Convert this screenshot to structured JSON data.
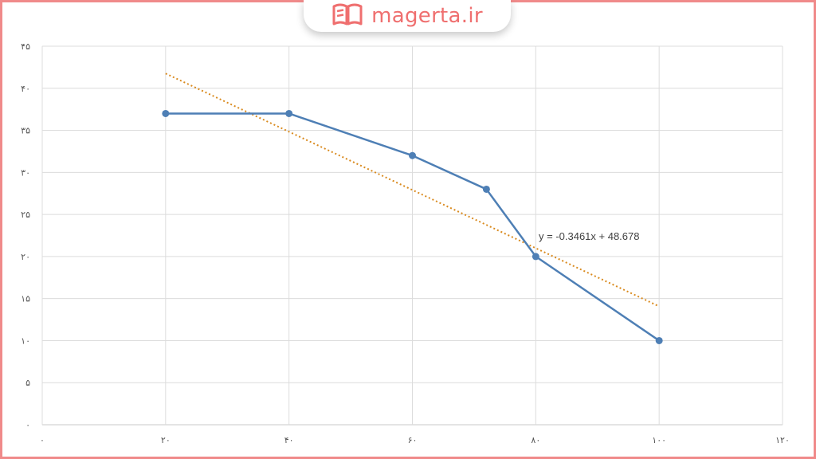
{
  "brand": {
    "name": "magerta.ir",
    "icon": "open-book-icon",
    "color": "#ef6f6f"
  },
  "chart_data": {
    "type": "line",
    "x": [
      20,
      40,
      60,
      72,
      80,
      100
    ],
    "series": [
      {
        "values": [
          37,
          37,
          32,
          28,
          20,
          10
        ],
        "color": "#4e7fb5",
        "marker": "circle"
      }
    ],
    "trendline": {
      "type": "linear",
      "slope": -0.3461,
      "intercept": 48.678,
      "x_range": [
        20,
        100
      ],
      "style": "dotted",
      "color": "#d98a1e",
      "equation_label": "y = -0.3461x + 48.678"
    },
    "xlim": [
      0,
      120
    ],
    "ylim": [
      0,
      45
    ],
    "x_ticks": [
      0,
      20,
      40,
      60,
      80,
      100,
      120
    ],
    "y_ticks": [
      0,
      5,
      10,
      15,
      20,
      25,
      30,
      35,
      40,
      45
    ],
    "x_tick_labels": [
      "٠",
      "٢٠",
      "۴٠",
      "۶٠",
      "٨٠",
      "١٠٠",
      "١٢٠"
    ],
    "y_tick_labels": [
      "٠",
      "۵",
      "١٠",
      "١۵",
      "٢٠",
      "٢۵",
      "٣٠",
      "٣۵",
      "۴٠",
      "۴۵"
    ],
    "grid": true,
    "title": "",
    "xlabel": "",
    "ylabel": ""
  }
}
